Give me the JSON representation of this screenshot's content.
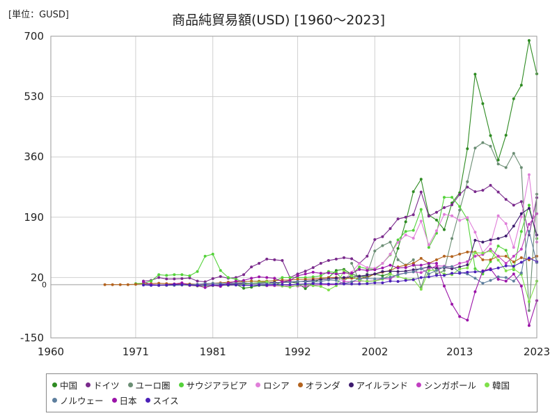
{
  "unit_label": "[単位：GUSD]",
  "chart_data": {
    "type": "line",
    "title": "商品純貿易額(USD) [1960～2023]",
    "xlim": [
      1960,
      2023
    ],
    "ylim": [
      -150,
      700
    ],
    "yticks": [
      -150,
      20,
      190,
      360,
      530,
      700
    ],
    "xticks": [
      1960,
      1971,
      1981,
      1992,
      2002,
      2013,
      2023
    ],
    "zero_label": "0",
    "grid": true,
    "legend_position": "bottom",
    "series": [
      {
        "name": "中国",
        "color": "#2e8b22",
        "x": [
          1984,
          1985,
          1986,
          1987,
          1988,
          1989,
          1990,
          1991,
          1992,
          1993,
          1994,
          1995,
          1996,
          1997,
          1998,
          1999,
          2000,
          2001,
          2002,
          2003,
          2004,
          2005,
          2006,
          2007,
          2008,
          2009,
          2010,
          2011,
          2012,
          2013,
          2014,
          2015,
          2016,
          2017,
          2018,
          2019,
          2020,
          2021,
          2022,
          2023
        ],
        "values": [
          1,
          -10,
          -7,
          -2,
          -3,
          -2,
          8,
          8,
          4,
          -11,
          5,
          17,
          20,
          40,
          43,
          29,
          24,
          22,
          30,
          25,
          32,
          102,
          177,
          262,
          297,
          196,
          182,
          155,
          230,
          259,
          383,
          593,
          510,
          420,
          351,
          421,
          524,
          562,
          688,
          594
        ]
      },
      {
        "name": "ドイツ",
        "color": "#7a2a8c",
        "x": [
          1972,
          1973,
          1974,
          1975,
          1976,
          1977,
          1978,
          1979,
          1980,
          1981,
          1982,
          1983,
          1984,
          1985,
          1986,
          1987,
          1988,
          1989,
          1990,
          1991,
          1992,
          1993,
          1994,
          1995,
          1996,
          1997,
          1998,
          1999,
          2000,
          2001,
          2002,
          2003,
          2004,
          2005,
          2006,
          2007,
          2008,
          2009,
          2010,
          2011,
          2012,
          2013,
          2014,
          2015,
          2016,
          2017,
          2018,
          2019,
          2020,
          2021,
          2022,
          2023
        ],
        "values": [
          10,
          12,
          20,
          16,
          16,
          17,
          19,
          10,
          8,
          17,
          23,
          18,
          20,
          28,
          50,
          60,
          72,
          70,
          68,
          20,
          30,
          38,
          48,
          60,
          68,
          72,
          76,
          73,
          60,
          80,
          127,
          135,
          158,
          185,
          190,
          197,
          261,
          193,
          204,
          217,
          225,
          254,
          275,
          262,
          266,
          280,
          261,
          240,
          224,
          234,
          140,
          245
        ]
      },
      {
        "name": "ユーロ圏",
        "color": "#6b8e74",
        "x": [
          1999,
          2000,
          2001,
          2002,
          2003,
          2004,
          2005,
          2006,
          2007,
          2008,
          2009,
          2010,
          2011,
          2012,
          2013,
          2014,
          2015,
          2016,
          2017,
          2018,
          2019,
          2020,
          2021,
          2022,
          2023
        ],
        "values": [
          60,
          10,
          30,
          95,
          110,
          120,
          70,
          55,
          70,
          -8,
          58,
          30,
          40,
          130,
          210,
          290,
          385,
          400,
          390,
          340,
          330,
          370,
          330,
          -73,
          255
        ]
      },
      {
        "name": "サウジアラビア",
        "color": "#54d23a",
        "x": [
          1971,
          1972,
          1973,
          1974,
          1975,
          1976,
          1977,
          1978,
          1979,
          1980,
          1981,
          1982,
          1983,
          1984,
          1985,
          1986,
          1987,
          1988,
          1989,
          1990,
          1991,
          1992,
          1993,
          1994,
          1995,
          1996,
          1997,
          1998,
          1999,
          2000,
          2001,
          2002,
          2003,
          2004,
          2005,
          2006,
          2007,
          2008,
          2009,
          2010,
          2011,
          2012,
          2013,
          2014,
          2015,
          2016,
          2017,
          2018,
          2019,
          2020,
          2021,
          2022,
          2023
        ],
        "values": [
          3,
          4,
          10,
          28,
          26,
          28,
          28,
          25,
          37,
          80,
          86,
          40,
          20,
          15,
          8,
          10,
          10,
          10,
          10,
          20,
          20,
          20,
          20,
          22,
          25,
          37,
          34,
          10,
          28,
          50,
          45,
          43,
          60,
          84,
          126,
          150,
          153,
          212,
          105,
          145,
          246,
          246,
          220,
          184,
          45,
          30,
          65,
          109,
          97,
          42,
          150,
          224,
          130
        ]
      },
      {
        "name": "ロシア",
        "color": "#e07fd9",
        "x": [
          1997,
          1998,
          1999,
          2000,
          2001,
          2002,
          2003,
          2004,
          2005,
          2006,
          2007,
          2008,
          2009,
          2010,
          2011,
          2012,
          2013,
          2014,
          2015,
          2016,
          2017,
          2018,
          2019,
          2020,
          2021,
          2022,
          2023
        ],
        "values": [
          15,
          12,
          35,
          60,
          48,
          46,
          60,
          86,
          119,
          140,
          131,
          179,
          112,
          152,
          198,
          194,
          181,
          189,
          148,
          90,
          115,
          194,
          172,
          105,
          191,
          310,
          120
        ]
      },
      {
        "name": "オランダ",
        "color": "#b3631e",
        "x": [
          1967,
          1968,
          1969,
          1970,
          1971,
          1972,
          1973,
          1974,
          1975,
          1976,
          1977,
          1978,
          1979,
          1980,
          1981,
          1982,
          1983,
          1984,
          1985,
          1986,
          1987,
          1988,
          1989,
          1990,
          1991,
          1992,
          1993,
          1994,
          1995,
          1996,
          1997,
          1998,
          1999,
          2000,
          2001,
          2002,
          2003,
          2004,
          2005,
          2006,
          2007,
          2008,
          2009,
          2010,
          2011,
          2012,
          2013,
          2014,
          2015,
          2016,
          2017,
          2018,
          2019,
          2020,
          2021,
          2022,
          2023
        ],
        "values": [
          0,
          0,
          0,
          0,
          1,
          2,
          3,
          4,
          3,
          2,
          3,
          2,
          1,
          2,
          4,
          5,
          7,
          8,
          8,
          10,
          9,
          10,
          11,
          13,
          13,
          15,
          15,
          16,
          18,
          20,
          20,
          18,
          18,
          18,
          20,
          30,
          35,
          40,
          50,
          55,
          60,
          74,
          60,
          70,
          80,
          79,
          86,
          92,
          92,
          70,
          70,
          80,
          80,
          64,
          76,
          70,
          80
        ]
      },
      {
        "name": "アイルランド",
        "color": "#3d1a6e",
        "x": [
          1982,
          1983,
          1984,
          1985,
          1986,
          1987,
          1988,
          1989,
          1990,
          1991,
          1992,
          1993,
          1994,
          1995,
          1996,
          1997,
          1998,
          1999,
          2000,
          2001,
          2002,
          2003,
          2004,
          2005,
          2006,
          2007,
          2008,
          2009,
          2010,
          2011,
          2012,
          2013,
          2014,
          2015,
          2016,
          2017,
          2018,
          2019,
          2020,
          2021,
          2022,
          2023
        ],
        "values": [
          0,
          1,
          2,
          3,
          4,
          5,
          6,
          6,
          6,
          7,
          8,
          10,
          12,
          14,
          16,
          18,
          20,
          22,
          24,
          27,
          30,
          37,
          38,
          37,
          38,
          42,
          45,
          50,
          46,
          48,
          45,
          50,
          56,
          125,
          120,
          126,
          130,
          137,
          165,
          200,
          215,
          140
        ]
      },
      {
        "name": "シンガポール",
        "color": "#c13fc1",
        "x": [
          1988,
          1989,
          1990,
          1991,
          1992,
          1993,
          1994,
          1995,
          1996,
          1997,
          1998,
          1999,
          2000,
          2001,
          2002,
          2003,
          2004,
          2005,
          2006,
          2007,
          2008,
          2009,
          2010,
          2011,
          2012,
          2013,
          2014,
          2015,
          2016,
          2017,
          2018,
          2019,
          2020,
          2021,
          2022,
          2023
        ],
        "values": [
          -3,
          -3,
          -4,
          -3,
          -4,
          -4,
          -2,
          0,
          0,
          0,
          8,
          8,
          10,
          10,
          11,
          17,
          16,
          29,
          33,
          36,
          34,
          44,
          53,
          52,
          50,
          60,
          65,
          80,
          85,
          100,
          80,
          60,
          80,
          100,
          170,
          200
        ]
      },
      {
        "name": "韓国",
        "color": "#7fe04a",
        "x": [
          1973,
          1974,
          1975,
          1976,
          1977,
          1978,
          1979,
          1980,
          1981,
          1982,
          1983,
          1984,
          1985,
          1986,
          1987,
          1988,
          1989,
          1990,
          1991,
          1992,
          1993,
          1994,
          1995,
          1996,
          1997,
          1998,
          1999,
          2000,
          2001,
          2002,
          2003,
          2004,
          2005,
          2006,
          2007,
          2008,
          2009,
          2010,
          2011,
          2012,
          2013,
          2014,
          2015,
          2016,
          2017,
          2018,
          2019,
          2020,
          2021,
          2022,
          2023
        ],
        "values": [
          -1,
          -2,
          -2,
          -1,
          -1,
          -2,
          -4,
          -4,
          -3,
          -2,
          -2,
          -1,
          0,
          4,
          6,
          8,
          0,
          -4,
          -7,
          -2,
          1,
          -3,
          -5,
          -15,
          -3,
          39,
          24,
          12,
          9,
          10,
          15,
          29,
          23,
          16,
          15,
          -13,
          40,
          41,
          30,
          28,
          44,
          47,
          90,
          89,
          95,
          69,
          39,
          45,
          29,
          -48,
          10
        ]
      },
      {
        "name": "ノルウェー",
        "color": "#5e7f9e",
        "x": [
          1972,
          1973,
          1974,
          1975,
          1976,
          1977,
          1978,
          1979,
          1980,
          1981,
          1982,
          1983,
          1984,
          1985,
          1986,
          1987,
          1988,
          1989,
          1990,
          1991,
          1992,
          1993,
          1994,
          1995,
          1996,
          1997,
          1998,
          1999,
          2000,
          2001,
          2002,
          2003,
          2004,
          2005,
          2006,
          2007,
          2008,
          2009,
          2010,
          2011,
          2012,
          2013,
          2014,
          2015,
          2016,
          2017,
          2018,
          2019,
          2020,
          2021,
          2022,
          2023
        ],
        "values": [
          0,
          0,
          -1,
          -2,
          -2,
          -1,
          0,
          1,
          3,
          4,
          3,
          4,
          5,
          5,
          3,
          3,
          2,
          4,
          6,
          8,
          9,
          8,
          8,
          9,
          13,
          12,
          3,
          8,
          17,
          18,
          16,
          18,
          21,
          28,
          33,
          36,
          46,
          30,
          40,
          50,
          51,
          35,
          30,
          18,
          4,
          12,
          22,
          20,
          10,
          33,
          150,
          62
        ]
      },
      {
        "name": "日本",
        "color": "#9b14a8",
        "x": [
          1972,
          1973,
          1974,
          1975,
          1976,
          1977,
          1978,
          1979,
          1980,
          1981,
          1982,
          1983,
          1984,
          1985,
          1986,
          1987,
          1988,
          1989,
          1990,
          1991,
          1992,
          1993,
          1994,
          1995,
          1996,
          1997,
          1998,
          1999,
          2000,
          2001,
          2002,
          2003,
          2004,
          2005,
          2006,
          2007,
          2008,
          2009,
          2010,
          2011,
          2012,
          2013,
          2014,
          2015,
          2016,
          2017,
          2018,
          2019,
          2020,
          2021,
          2022,
          2023
        ],
        "values": [
          8,
          0,
          -2,
          -1,
          2,
          5,
          -2,
          -3,
          -8,
          -2,
          -5,
          4,
          10,
          12,
          18,
          22,
          20,
          18,
          8,
          12,
          25,
          30,
          35,
          32,
          33,
          30,
          33,
          32,
          43,
          40,
          42,
          47,
          55,
          47,
          48,
          55,
          55,
          60,
          60,
          -4,
          -55,
          -90,
          -100,
          -20,
          39,
          45,
          15,
          10,
          30,
          -4,
          -115,
          -45
        ]
      },
      {
        "name": "スイス",
        "color": "#4b20b8",
        "x": [
          1972,
          1973,
          1974,
          1975,
          1976,
          1977,
          1978,
          1979,
          1980,
          1981,
          1982,
          1983,
          1984,
          1985,
          1986,
          1987,
          1988,
          1989,
          1990,
          1991,
          1992,
          1993,
          1994,
          1995,
          1996,
          1997,
          1998,
          1999,
          2000,
          2001,
          2002,
          2003,
          2004,
          2005,
          2006,
          2007,
          2008,
          2009,
          2010,
          2011,
          2012,
          2013,
          2014,
          2015,
          2016,
          2017,
          2018,
          2019,
          2020,
          2021,
          2022,
          2023
        ],
        "values": [
          -1,
          -2,
          -2,
          -1,
          0,
          0,
          -1,
          -2,
          -1,
          -1,
          -1,
          -1,
          -1,
          -2,
          -2,
          -1,
          -1,
          0,
          0,
          0,
          1,
          2,
          3,
          3,
          2,
          2,
          2,
          2,
          2,
          3,
          5,
          5,
          10,
          9,
          12,
          14,
          20,
          22,
          26,
          26,
          32,
          32,
          35,
          36,
          37,
          42,
          47,
          53,
          52,
          63,
          75,
          65
        ]
      }
    ]
  }
}
